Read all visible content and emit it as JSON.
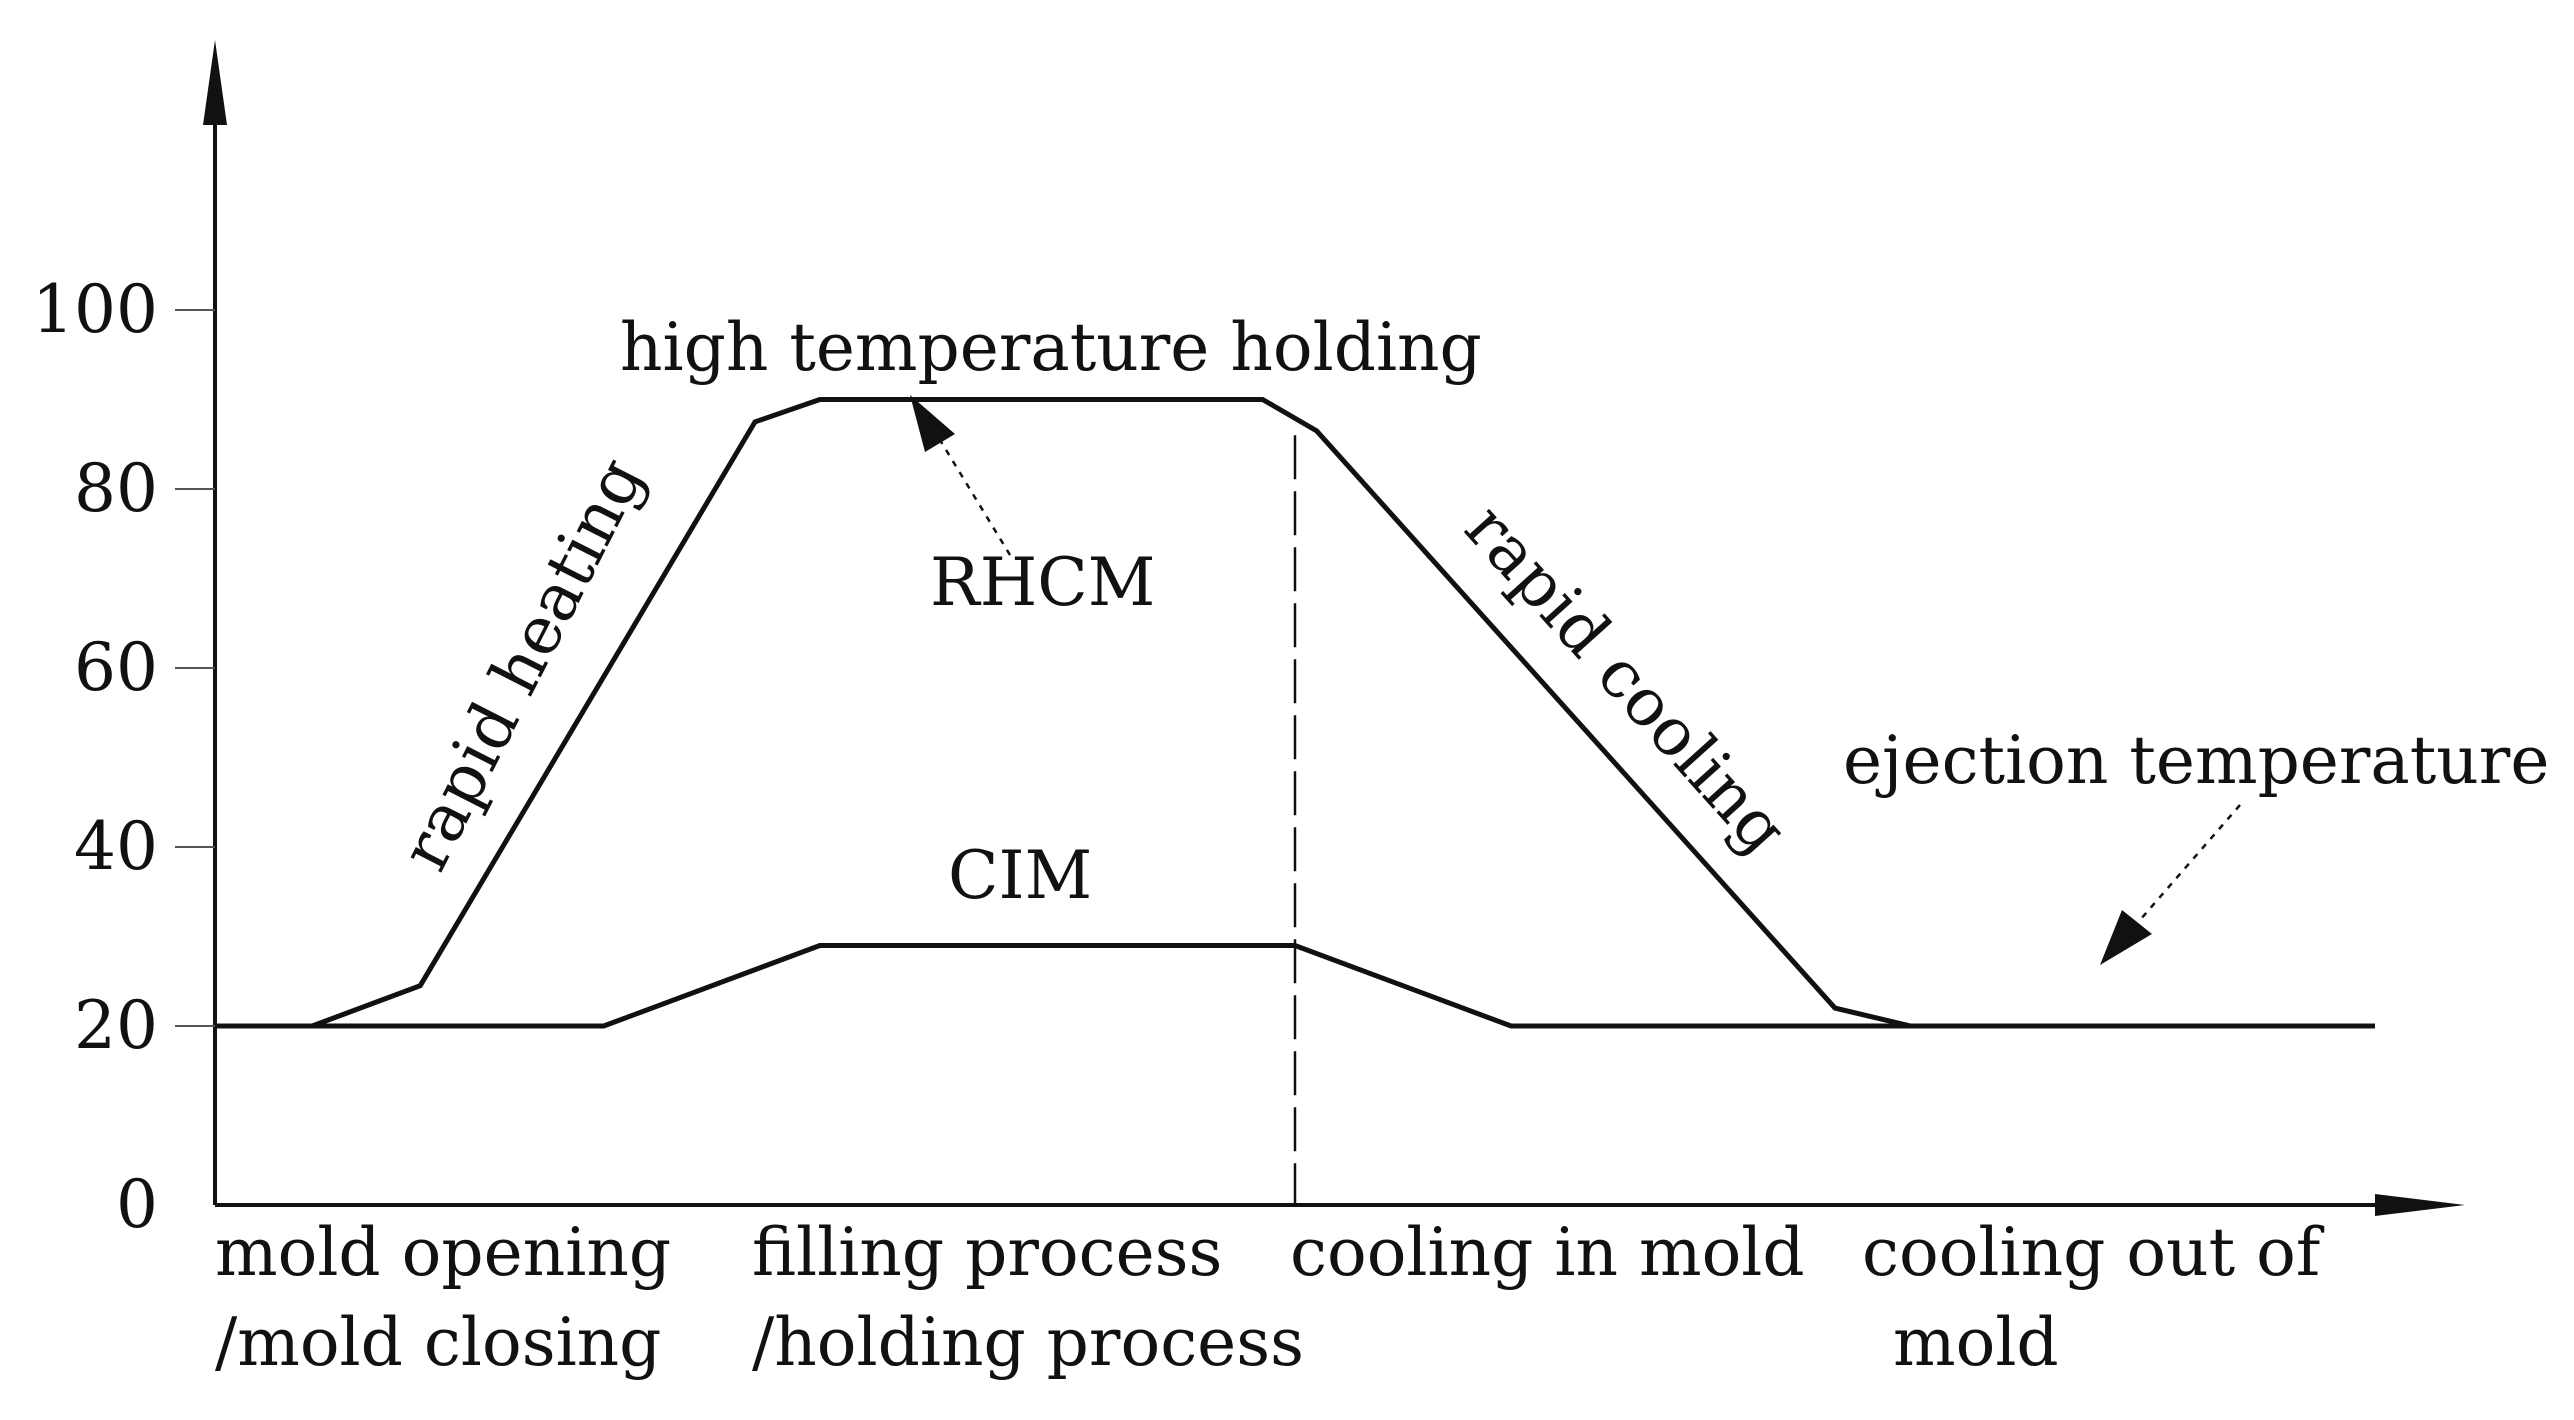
{
  "chart_data": {
    "type": "line",
    "y_ticks": [
      "0",
      "20",
      "40",
      "60",
      "80",
      "100"
    ],
    "y_tick_values": [
      0,
      20,
      40,
      60,
      80,
      100
    ],
    "ylim": [
      0,
      110
    ],
    "xlim": [
      0,
      100
    ],
    "phases": [
      {
        "line1": "mold opening",
        "line2": "/mold closing"
      },
      {
        "line1": "filling process",
        "line2": "/holding process"
      },
      {
        "line1": "cooling in mold",
        "line2": ""
      },
      {
        "line1": "cooling out of",
        "line2": "mold"
      }
    ],
    "series": [
      {
        "name": "RHCM",
        "x": [
          0,
          4.5,
          9.5,
          25,
          28,
          48.5,
          51,
          75,
          78.5,
          100
        ],
        "y": [
          20,
          20,
          24.5,
          87.5,
          90,
          90,
          86.5,
          22,
          20,
          20
        ]
      },
      {
        "name": "CIM",
        "x": [
          0,
          18,
          28,
          50,
          60,
          100
        ],
        "y": [
          20,
          20,
          29,
          29,
          20,
          20
        ]
      }
    ],
    "annotations": {
      "high_temperature_holding": "high temperature holding",
      "rapid_heating": "rapid heating",
      "rapid_cooling": "rapid cooling",
      "ejection_temperature": "ejection temperature"
    },
    "grid": false,
    "legend": "none"
  }
}
